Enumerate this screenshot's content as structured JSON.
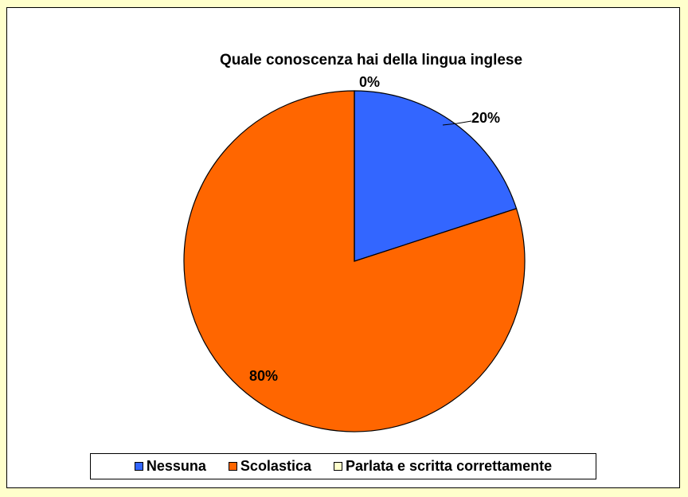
{
  "chart_data": {
    "type": "pie",
    "title": "Quale conoscenza hai della lingua inglese",
    "slices": [
      {
        "name": "Nessuna",
        "value": 20,
        "label": "20%",
        "color": "#3366ff"
      },
      {
        "name": "Scolastica",
        "value": 80,
        "label": "80%",
        "color": "#ff6600"
      },
      {
        "name": "Parlata e scritta correttamente",
        "value": 0,
        "label": "0%",
        "color": "#ffffcc"
      }
    ],
    "legend_position": "bottom"
  }
}
